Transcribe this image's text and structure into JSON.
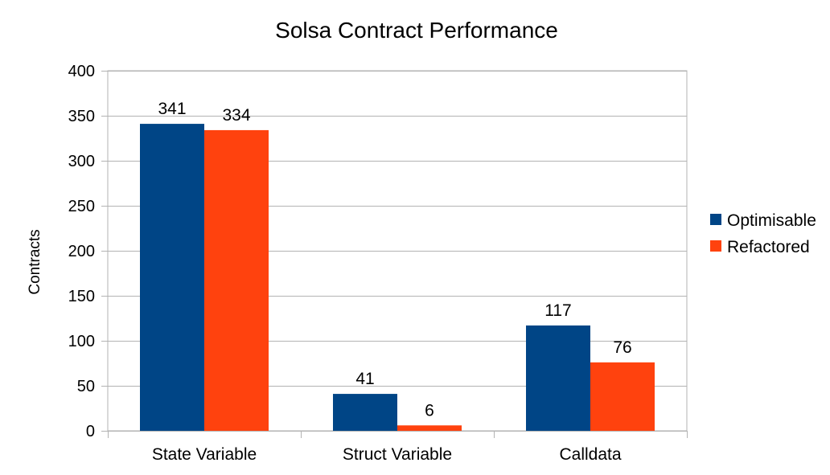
{
  "chart_data": {
    "type": "bar",
    "title": "Solsa Contract Performance",
    "xlabel": "",
    "ylabel": "Contracts",
    "ylim": [
      0,
      400
    ],
    "yticks": [
      0,
      50,
      100,
      150,
      200,
      250,
      300,
      350,
      400
    ],
    "grid": true,
    "legend_position": "right",
    "categories": [
      "State Variable",
      "Struct Variable",
      "Calldata"
    ],
    "series": [
      {
        "name": "Optimisable",
        "color": "#004586",
        "values": [
          341,
          41,
          117
        ]
      },
      {
        "name": "Refactored",
        "color": "#ff420e",
        "values": [
          334,
          6,
          76
        ]
      }
    ]
  }
}
